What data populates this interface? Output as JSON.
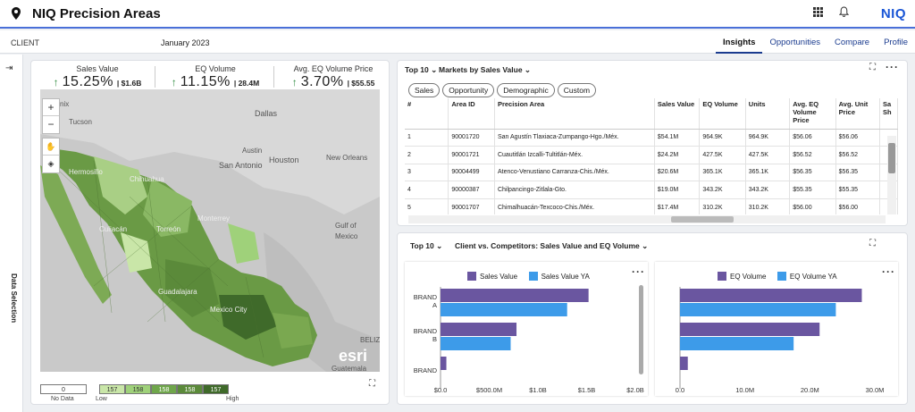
{
  "header": {
    "title": "NIQ Precision Areas",
    "brand": "NIQ"
  },
  "subbar": {
    "client_label": "CLIENT",
    "period": "January 2023",
    "tabs": [
      {
        "label": "Insights",
        "active": true
      },
      {
        "label": "Opportunities",
        "active": false
      },
      {
        "label": "Compare",
        "active": false
      },
      {
        "label": "Profile",
        "active": false
      }
    ]
  },
  "sidebar": {
    "label": "Data Selection"
  },
  "kpis": [
    {
      "label": "Sales Value",
      "pct": "15.25%",
      "abs": "| $1.6B"
    },
    {
      "label": "EQ Volume",
      "pct": "11.15%",
      "abs": "| 28.4M"
    },
    {
      "label": "Avg. EQ Volume Price",
      "pct": "3.70%",
      "abs": "| $55.55"
    }
  ],
  "map": {
    "labels": [
      "nix",
      "Tucson",
      "Dallas",
      "Austin",
      "San Antonio",
      "Houston",
      "New Orleans",
      "Hermosillo",
      "Chihuahua",
      "Torreón",
      "Monterrey",
      "Culiacán",
      "Gulf of",
      "Mexico",
      "Guadalajara",
      "Mexico City",
      "BELIZ",
      "Guatemala",
      "esri"
    ],
    "legend_nodata": "0",
    "legend_nodata_label": "No Data",
    "legend_low": "Low",
    "legend_high": "High",
    "legend_values": [
      "157",
      "158",
      "158",
      "158",
      "157"
    ],
    "legend_colors": [
      "#c9e6a8",
      "#9fd17a",
      "#6fa64b",
      "#5b8a3a",
      "#3f6a2a"
    ]
  },
  "markets": {
    "top_label": "Top 10",
    "title": "Markets by Sales Value",
    "filters": [
      "Sales",
      "Opportunity",
      "Demographic",
      "Custom"
    ],
    "columns": [
      "#",
      "Area ID",
      "Precision Area",
      "Sales Value",
      "EQ Volume",
      "Units",
      "Avg. EQ Volume Price",
      "Avg. Unit Price",
      "Sa Sh"
    ],
    "rows": [
      [
        "1",
        "90001720",
        "San Agustín Tlaxiaca-Zumpango-Hgo./Méx.",
        "$54.1M",
        "964.9K",
        "964.9K",
        "$56.06",
        "$56.06"
      ],
      [
        "2",
        "90001721",
        "Cuautitlán Izcalli-Tultitlán-Méx.",
        "$24.2M",
        "427.5K",
        "427.5K",
        "$56.52",
        "$56.52"
      ],
      [
        "3",
        "90004499",
        "Atenco-Venustiano Carranza-Chis./Méx.",
        "$20.6M",
        "365.1K",
        "365.1K",
        "$56.35",
        "$56.35"
      ],
      [
        "4",
        "90000387",
        "Chilpancingo-Zitlala-Gto.",
        "$19.0M",
        "343.2K",
        "343.2K",
        "$55.35",
        "$55.35"
      ],
      [
        "5",
        "90001707",
        "Chimalhuacán-Texcoco-Chis./Méx.",
        "$17.4M",
        "310.2K",
        "310.2K",
        "$56.00",
        "$56.00"
      ]
    ]
  },
  "comp": {
    "top_label": "Top 10",
    "title": "Client vs. Competitors: Sales Value and EQ Volume"
  },
  "chart_data": [
    {
      "type": "bar",
      "orientation": "horizontal",
      "categories": [
        "BRAND A",
        "BRAND B",
        "BRAND"
      ],
      "series": [
        {
          "name": "Sales Value",
          "color": "#6a56a0",
          "values": [
            1.52,
            0.78,
            0.06
          ]
        },
        {
          "name": "Sales Value YA",
          "color": "#3d9be9",
          "values": [
            1.3,
            0.72,
            0
          ]
        }
      ],
      "xticks": [
        "$0.0",
        "$500.0M",
        "$1.0B",
        "$1.5B",
        "$2.0B"
      ],
      "xlim": [
        0,
        2.0
      ]
    },
    {
      "type": "bar",
      "orientation": "horizontal",
      "categories": [
        "BRAND A",
        "BRAND B",
        "BRAND"
      ],
      "series": [
        {
          "name": "EQ Volume",
          "color": "#6a56a0",
          "values": [
            28.0,
            21.5,
            1.2
          ]
        },
        {
          "name": "EQ Volume YA",
          "color": "#3d9be9",
          "values": [
            24.0,
            17.5,
            0
          ]
        }
      ],
      "xticks": [
        "0.0",
        "10.0M",
        "20.0M",
        "30.0M"
      ],
      "xlim": [
        0,
        30
      ]
    }
  ]
}
